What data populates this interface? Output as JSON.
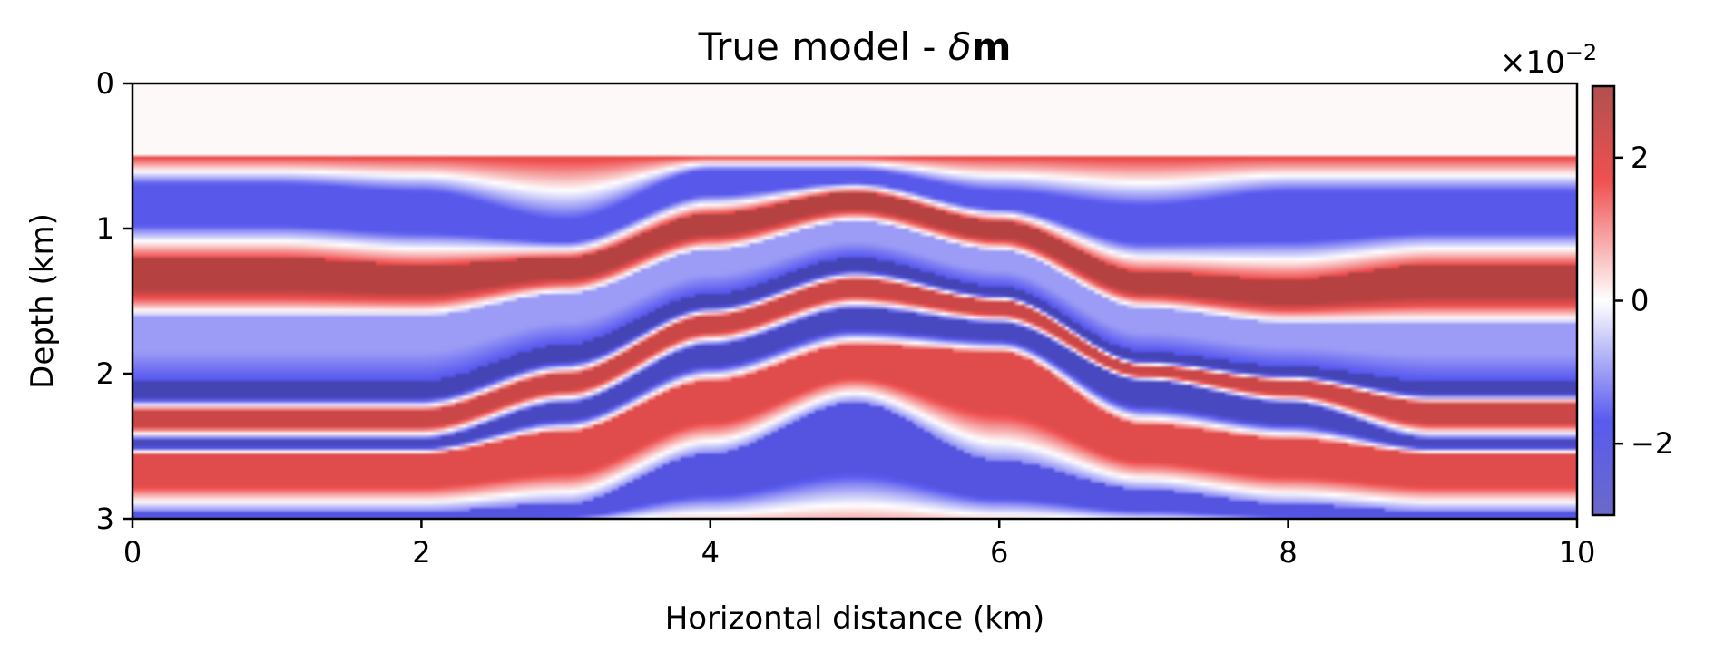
{
  "chart_data": {
    "type": "heatmap",
    "title_prefix": "True model - ",
    "title_delta": "δ",
    "title_bold": "m",
    "xlabel": "Horizontal distance (km)",
    "ylabel": "Depth (km)",
    "xlim": [
      0,
      10
    ],
    "ylim": [
      3,
      0
    ],
    "x_ticks": [
      0,
      2,
      4,
      6,
      8,
      10
    ],
    "x_tick_labels": [
      "0",
      "2",
      "4",
      "6",
      "8",
      "10"
    ],
    "y_ticks": [
      0,
      1,
      2,
      3
    ],
    "y_tick_labels": [
      "0",
      "1",
      "2",
      "3"
    ],
    "colorbar": {
      "range": [
        -3,
        3
      ],
      "multiplier_base": "×10",
      "multiplier_exp": "−2",
      "ticks": [
        2,
        0,
        -2
      ],
      "tick_labels": [
        "2",
        "0",
        "−2"
      ],
      "colors": [
        "#3c3ca0",
        "#5a5af0",
        "#ffffff",
        "#f05050",
        "#a03c3c"
      ]
    },
    "water_layer_bottom_depth": 0.5,
    "reflectors": [
      {
        "depths": [
          0.7,
          0.7,
          0.75,
          0.95,
          0.6,
          0.6,
          0.75,
          0.85,
          0.75,
          0.75,
          0.75
        ],
        "value": -1.6
      },
      {
        "depths": [
          1.2,
          1.2,
          1.25,
          1.2,
          0.9,
          0.75,
          0.95,
          1.3,
          1.35,
          1.25,
          1.25
        ],
        "value": 2.6
      },
      {
        "depths": [
          1.6,
          1.6,
          1.6,
          1.45,
          1.15,
          0.95,
          1.15,
          1.55,
          1.65,
          1.65,
          1.65
        ],
        "value": -0.9
      },
      {
        "depths": [
          2.05,
          2.05,
          2.05,
          1.8,
          1.45,
          1.2,
          1.4,
          1.85,
          1.95,
          2.05,
          2.05
        ],
        "value": -2.6
      },
      {
        "depths": [
          2.25,
          2.25,
          2.25,
          2.0,
          1.6,
          1.35,
          1.5,
          1.95,
          2.05,
          2.2,
          2.2
        ],
        "value": 2.2
      },
      {
        "depths": [
          2.45,
          2.45,
          2.45,
          2.2,
          1.8,
          1.55,
          1.65,
          2.05,
          2.2,
          2.45,
          2.45
        ],
        "value": -2.4
      },
      {
        "depths": [
          2.55,
          2.55,
          2.55,
          2.4,
          2.05,
          1.8,
          1.85,
          2.35,
          2.45,
          2.55,
          2.55
        ],
        "value": 1.8
      },
      {
        "depths": [
          2.95,
          2.95,
          2.95,
          2.9,
          2.55,
          2.2,
          2.6,
          2.8,
          2.9,
          2.95,
          2.95
        ],
        "value": -1.8
      }
    ]
  }
}
